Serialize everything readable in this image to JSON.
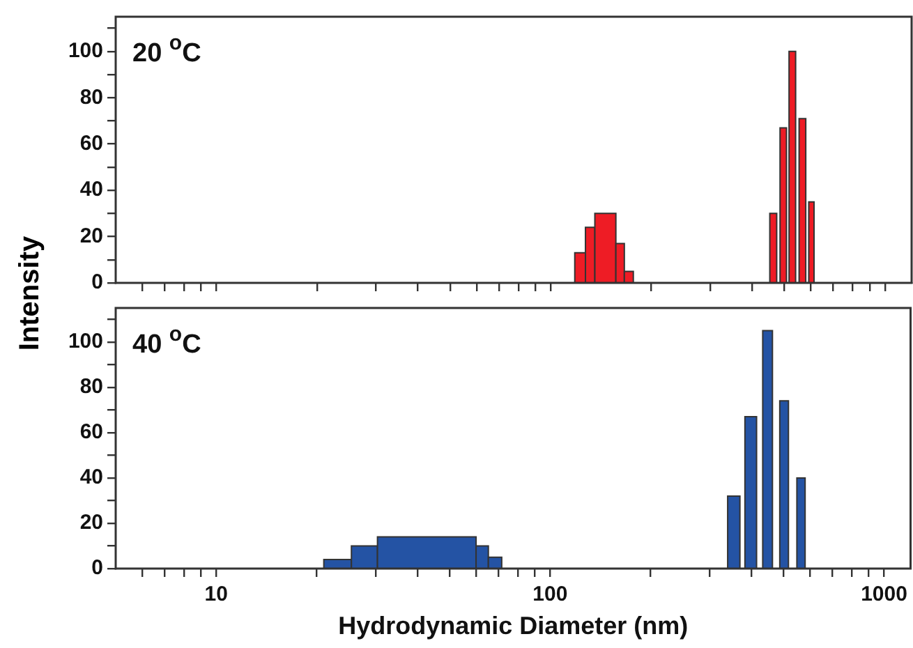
{
  "chart_data": [
    {
      "type": "histogram",
      "ylabel": "Intensity",
      "annotations": [
        "20 $^{o}$C"
      ],
      "log": "x",
      "grid": false,
      "tick_labels": "y",
      "color": "#ee1c25",
      "bins": [
        118,
        127,
        135.5,
        156.6,
        166,
        176.6,
        452,
        474,
        485,
        507,
        516,
        540,
        553,
        579,
        591,
        613
      ],
      "values": [
        13,
        24,
        30,
        17,
        5,
        null,
        30,
        null,
        67,
        null,
        100,
        null,
        71,
        null,
        35
      ],
      "xlim": [
        5,
        1200
      ],
      "xticks": [
        {
          "value": 6,
          "label": null
        },
        {
          "value": 7,
          "label": null
        },
        {
          "value": 8,
          "label": null
        },
        {
          "value": 9,
          "label": null
        },
        10,
        {
          "value": 20,
          "label": null
        },
        {
          "value": 30,
          "label": null
        },
        {
          "value": 40,
          "label": null
        },
        {
          "value": 50,
          "label": null
        },
        {
          "value": 60,
          "label": null
        },
        {
          "value": 70,
          "label": null
        },
        {
          "value": 80,
          "label": null
        },
        {
          "value": 90,
          "label": null
        },
        100,
        {
          "value": 200,
          "label": null
        },
        {
          "value": 300,
          "label": null
        },
        {
          "value": 400,
          "label": null
        },
        {
          "value": 500,
          "label": null
        },
        {
          "value": 600,
          "label": null
        },
        {
          "value": 700,
          "label": null
        },
        {
          "value": 800,
          "label": null
        },
        {
          "value": 900,
          "label": null
        },
        1000
      ],
      "ylim": [
        0,
        115
      ],
      "yticks": [
        0,
        {
          "value": 10,
          "label": null
        },
        20,
        {
          "value": 30,
          "label": null
        },
        40,
        {
          "value": 50,
          "label": null
        },
        60,
        {
          "value": 70,
          "label": null
        },
        80,
        {
          "value": 90,
          "label": null
        },
        100,
        {
          "value": 110,
          "label": null
        }
      ]
    },
    {
      "type": "histogram",
      "xlabel": "Hydrodynamic Diameter (nm)",
      "annotations": [
        "40 $^{o}$C"
      ],
      "log": "x",
      "grid": false,
      "color": "#2453a4",
      "bins": [
        21,
        25.4,
        30.4,
        60,
        65.3,
        71.6,
        340,
        370,
        383,
        415,
        433,
        463,
        487,
        517,
        548,
        580
      ],
      "values": [
        4,
        10,
        14,
        10,
        5,
        null,
        32,
        null,
        67,
        null,
        105,
        null,
        74,
        null,
        40
      ],
      "xlim": [
        5,
        1200
      ],
      "xticks": [
        {
          "value": 6,
          "label": null
        },
        {
          "value": 7,
          "label": null
        },
        {
          "value": 8,
          "label": null
        },
        {
          "value": 9,
          "label": null
        },
        10,
        {
          "value": 20,
          "label": null
        },
        {
          "value": 30,
          "label": null
        },
        {
          "value": 40,
          "label": null
        },
        {
          "value": 50,
          "label": null
        },
        {
          "value": 60,
          "label": null
        },
        {
          "value": 70,
          "label": null
        },
        {
          "value": 80,
          "label": null
        },
        {
          "value": 90,
          "label": null
        },
        100,
        {
          "value": 200,
          "label": null
        },
        {
          "value": 300,
          "label": null
        },
        {
          "value": 400,
          "label": null
        },
        {
          "value": 500,
          "label": null
        },
        {
          "value": 600,
          "label": null
        },
        {
          "value": 700,
          "label": null
        },
        {
          "value": 800,
          "label": null
        },
        {
          "value": 900,
          "label": null
        },
        1000
      ],
      "ylim": [
        0,
        115
      ],
      "yticks": [
        0,
        {
          "value": 10,
          "label": null
        },
        20,
        {
          "value": 30,
          "label": null
        },
        40,
        {
          "value": 50,
          "label": null
        },
        60,
        {
          "value": 70,
          "label": null
        },
        80,
        {
          "value": 90,
          "label": null
        },
        100,
        {
          "value": 110,
          "label": null
        }
      ]
    }
  ]
}
